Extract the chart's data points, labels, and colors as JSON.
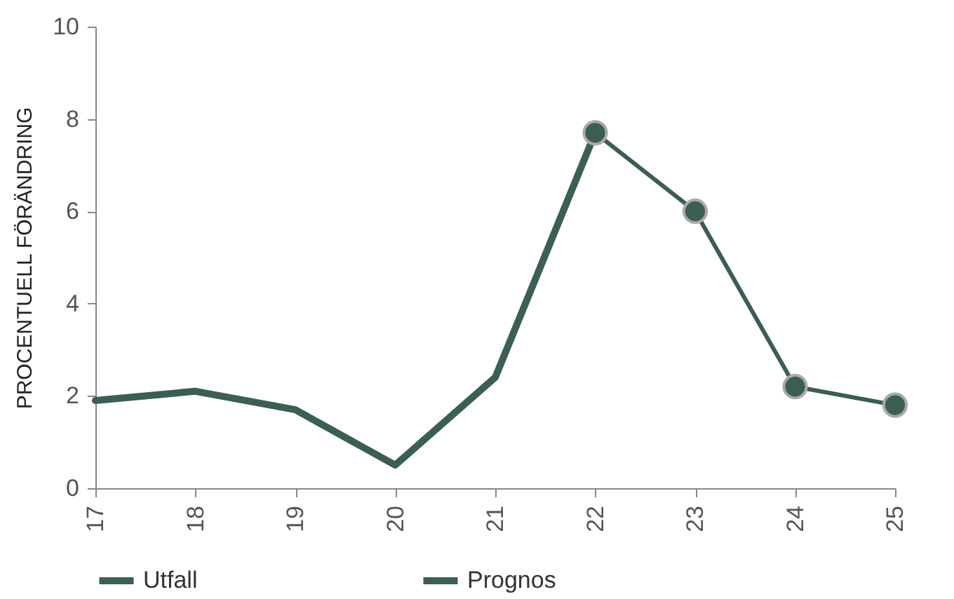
{
  "chart_data": {
    "type": "line",
    "ylabel": "PROCENTUELL FÖRÄNDRING",
    "categories": [
      "17",
      "18",
      "19",
      "20",
      "21",
      "22",
      "23",
      "24",
      "25"
    ],
    "series": [
      {
        "name": "Utfall",
        "color": "#3b5e55",
        "marker": "none",
        "values": [
          1.9,
          2.1,
          1.7,
          0.5,
          2.4,
          7.7,
          null,
          null,
          null
        ]
      },
      {
        "name": "Prognos",
        "color": "#3b5e55",
        "marker": "circle",
        "values": [
          null,
          null,
          null,
          null,
          null,
          7.7,
          6.0,
          2.2,
          1.8
        ]
      }
    ],
    "ylim": [
      0,
      10
    ],
    "yticks": [
      0,
      2,
      4,
      6,
      8,
      10
    ],
    "grid": false,
    "legend": "bottom",
    "line_style": "solid"
  }
}
